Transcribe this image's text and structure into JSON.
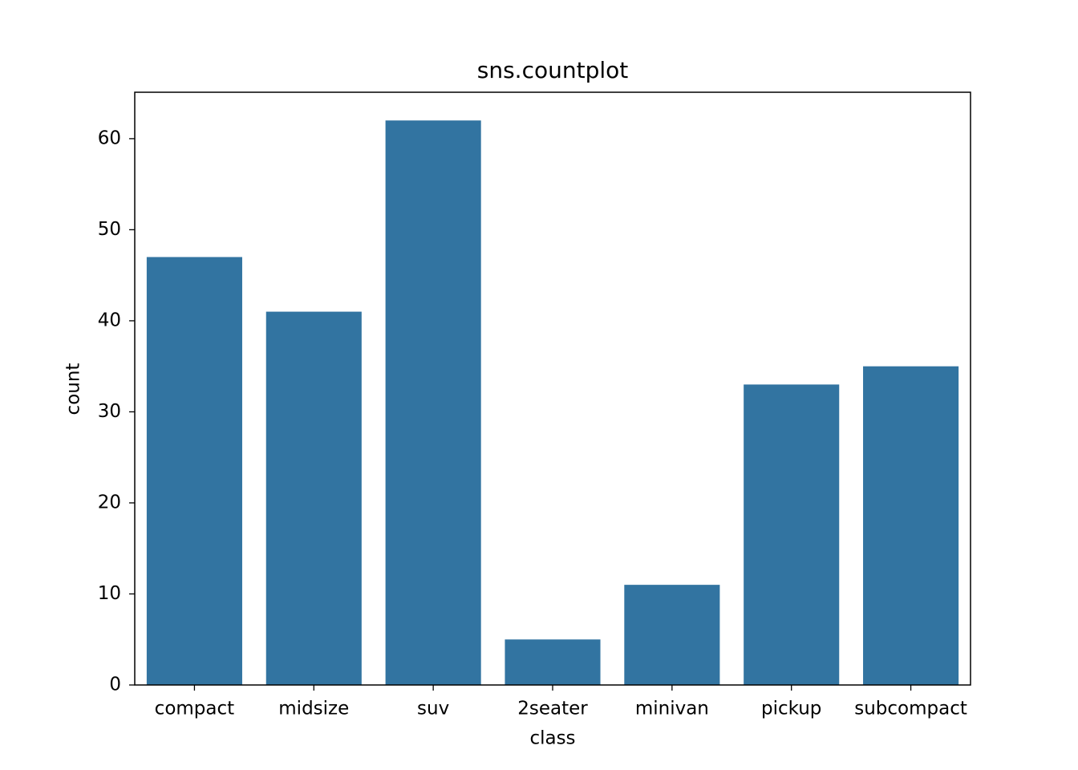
{
  "chart_data": {
    "type": "bar",
    "title": "sns.countplot",
    "x_label": "class",
    "y_label": "count",
    "categories": [
      "compact",
      "midsize",
      "suv",
      "2seater",
      "minivan",
      "pickup",
      "subcompact"
    ],
    "values": [
      47,
      41,
      62,
      5,
      11,
      33,
      35
    ],
    "color": "#3274a1",
    "ylim": [
      0,
      65.1
    ],
    "yticks": [
      0,
      10,
      20,
      30,
      40,
      50,
      60
    ],
    "grid": false
  }
}
